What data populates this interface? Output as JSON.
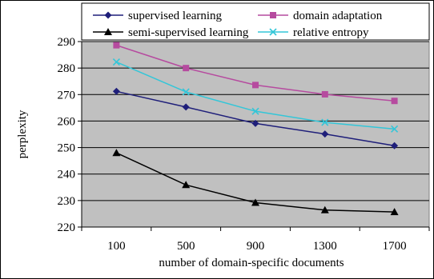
{
  "chart_data": {
    "type": "line",
    "title": "",
    "xlabel": "number of domain-specific documents",
    "ylabel": "perplexity",
    "categories": [
      "100",
      "500",
      "900",
      "1300",
      "1700"
    ],
    "ylim": [
      220,
      290
    ],
    "yticks": [
      220,
      230,
      240,
      250,
      260,
      270,
      280,
      290
    ],
    "grid": true,
    "legend_position": "top",
    "background_color": "#c0c0c0",
    "series": [
      {
        "name": "supervised learning",
        "values": [
          271.2,
          265.3,
          259.1,
          255.1,
          250.7
        ],
        "color": "#1f1f7a",
        "marker": "diamond"
      },
      {
        "name": "domain adaptation",
        "values": [
          288.6,
          280.0,
          273.6,
          270.1,
          267.6
        ],
        "color": "#b64b9f",
        "marker": "square"
      },
      {
        "name": "semi-supervised learning",
        "values": [
          248.0,
          235.9,
          229.2,
          226.4,
          225.7
        ],
        "color": "#000000",
        "marker": "triangle"
      },
      {
        "name": "relative entropy",
        "values": [
          282.3,
          271.0,
          263.7,
          259.5,
          257.0
        ],
        "color": "#33c6d8",
        "marker": "x"
      }
    ]
  }
}
